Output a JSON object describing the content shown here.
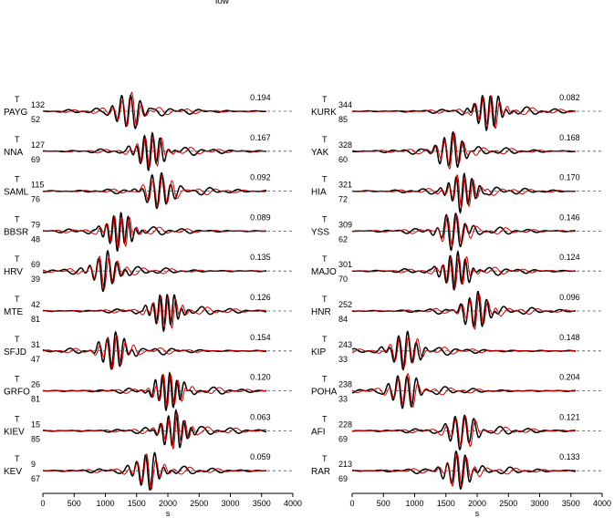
{
  "header_text": "low",
  "trace_colors": {
    "observed": "#000000",
    "synthetic": "#cc0000"
  },
  "chart_data": {
    "type": "line",
    "xlabel": "s",
    "xlim": [
      0,
      4000
    ],
    "xticks": [
      0,
      500,
      1000,
      1500,
      2000,
      2500,
      3000,
      3500,
      4000
    ],
    "component_label": "T",
    "panels": [
      {
        "traces": [
          {
            "station": "PAYG",
            "azimuth": "132",
            "distance": "52",
            "value": "0.194",
            "arrival_s": 1370,
            "polarity": 1
          },
          {
            "station": "NNA",
            "azimuth": "127",
            "distance": "69",
            "value": "0.167",
            "arrival_s": 1720,
            "polarity": 1
          },
          {
            "station": "SAML",
            "azimuth": "115",
            "distance": "76",
            "value": "0.092",
            "arrival_s": 1860,
            "polarity": 1
          },
          {
            "station": "BBSR",
            "azimuth": "79",
            "distance": "48",
            "value": "0.089",
            "arrival_s": 1220,
            "polarity": 1
          },
          {
            "station": "HRV",
            "azimuth": "69",
            "distance": "39",
            "value": "0.135",
            "arrival_s": 1000,
            "polarity": 1
          },
          {
            "station": "MTE",
            "azimuth": "42",
            "distance": "81",
            "value": "0.126",
            "arrival_s": 1960,
            "polarity": 1
          },
          {
            "station": "SFJD",
            "azimuth": "31",
            "distance": "47",
            "value": "0.154",
            "arrival_s": 1130,
            "polarity": 1
          },
          {
            "station": "GRFO",
            "azimuth": "26",
            "distance": "81",
            "value": "0.120",
            "arrival_s": 2000,
            "polarity": 1
          },
          {
            "station": "KIEV",
            "azimuth": "15",
            "distance": "85",
            "value": "0.063",
            "arrival_s": 2100,
            "polarity": 1
          },
          {
            "station": "KEV",
            "azimuth": "9",
            "distance": "67",
            "value": "0.059",
            "arrival_s": 1680,
            "polarity": -1
          }
        ]
      },
      {
        "traces": [
          {
            "station": "KURK",
            "azimuth": "344",
            "distance": "85",
            "value": "0.082",
            "arrival_s": 2180,
            "polarity": 1
          },
          {
            "station": "YAK",
            "azimuth": "328",
            "distance": "60",
            "value": "0.168",
            "arrival_s": 1580,
            "polarity": 1
          },
          {
            "station": "HIA",
            "azimuth": "321",
            "distance": "72",
            "value": "0.170",
            "arrival_s": 1760,
            "polarity": 1
          },
          {
            "station": "YSS",
            "azimuth": "309",
            "distance": "62",
            "value": "0.146",
            "arrival_s": 1620,
            "polarity": 1
          },
          {
            "station": "MAJO",
            "azimuth": "301",
            "distance": "70",
            "value": "0.124",
            "arrival_s": 1660,
            "polarity": 1
          },
          {
            "station": "HNR",
            "azimuth": "252",
            "distance": "84",
            "value": "0.096",
            "arrival_s": 1980,
            "polarity": 1
          },
          {
            "station": "KIP",
            "azimuth": "243",
            "distance": "33",
            "value": "0.148",
            "arrival_s": 850,
            "polarity": 1
          },
          {
            "station": "POHA",
            "azimuth": "238",
            "distance": "33",
            "value": "0.204",
            "arrival_s": 840,
            "polarity": 1
          },
          {
            "station": "AFI",
            "azimuth": "228",
            "distance": "69",
            "value": "0.121",
            "arrival_s": 1760,
            "polarity": 1
          },
          {
            "station": "RAR",
            "azimuth": "213",
            "distance": "69",
            "value": "0.133",
            "arrival_s": 1700,
            "polarity": -1
          }
        ]
      }
    ]
  }
}
